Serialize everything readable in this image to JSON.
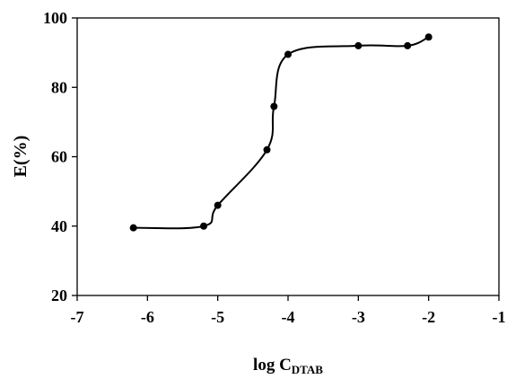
{
  "chart_data": {
    "type": "line",
    "title": "",
    "xlabel": "log C",
    "xlabel_subscript": "DTAB",
    "ylabel": "E(%)",
    "xlim": [
      -7,
      -1
    ],
    "ylim": [
      20,
      100
    ],
    "xticks": [
      -7,
      -6,
      -5,
      -4,
      -3,
      -2,
      -1
    ],
    "yticks": [
      20,
      40,
      60,
      80,
      100
    ],
    "xtick_labels": [
      "-7",
      "-6",
      "-5",
      "-4",
      "-3",
      "-2",
      "-1"
    ],
    "ytick_labels": [
      "20",
      "40",
      "60",
      "80",
      "100"
    ],
    "grid": false,
    "legend": "none",
    "series": [
      {
        "x": [
          -6.2,
          -5.2,
          -5.0,
          -4.3,
          -4.2,
          -4.0,
          -3.0,
          -2.3,
          -2.0
        ],
        "y": [
          39.5,
          40.0,
          46.0,
          62.0,
          74.5,
          89.5,
          92.0,
          92.0,
          94.5
        ],
        "color": "#000000",
        "marker": "circle",
        "smooth": true
      }
    ]
  }
}
